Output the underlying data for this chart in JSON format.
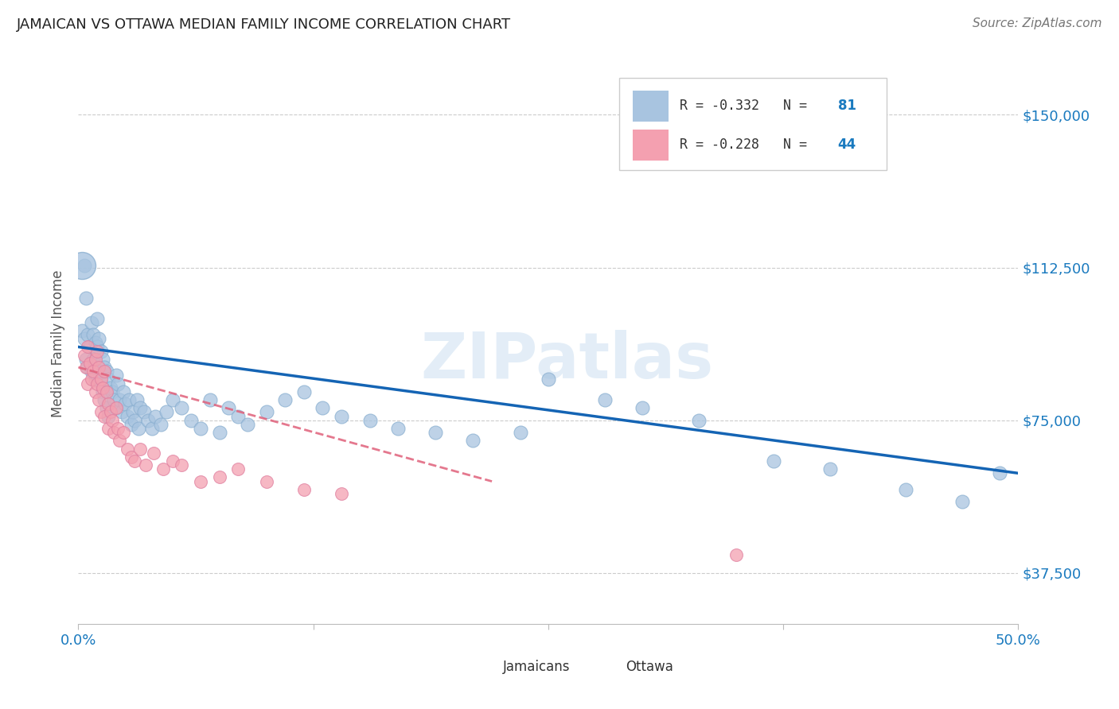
{
  "title": "JAMAICAN VS OTTAWA MEDIAN FAMILY INCOME CORRELATION CHART",
  "source_text": "Source: ZipAtlas.com",
  "ylabel": "Median Family Income",
  "xlim": [
    0.0,
    50.0
  ],
  "ylim": [
    25000,
    162500
  ],
  "yticks": [
    37500,
    75000,
    112500,
    150000
  ],
  "ytick_labels": [
    "$37,500",
    "$75,000",
    "$112,500",
    "$150,000"
  ],
  "blue_color": "#a8c4e0",
  "pink_color": "#f4a0b0",
  "line_blue": "#1464b4",
  "line_pink": "#e0607a",
  "watermark": "ZIPatlas",
  "blue_scatter_x": [
    0.2,
    0.3,
    0.3,
    0.4,
    0.4,
    0.5,
    0.5,
    0.6,
    0.7,
    0.7,
    0.8,
    0.8,
    0.9,
    0.9,
    1.0,
    1.0,
    1.0,
    1.1,
    1.1,
    1.2,
    1.2,
    1.3,
    1.3,
    1.4,
    1.4,
    1.5,
    1.5,
    1.6,
    1.6,
    1.7,
    1.8,
    1.9,
    2.0,
    2.0,
    2.1,
    2.2,
    2.3,
    2.4,
    2.5,
    2.6,
    2.7,
    2.8,
    2.9,
    3.0,
    3.1,
    3.2,
    3.3,
    3.5,
    3.7,
    3.9,
    4.1,
    4.4,
    4.7,
    5.0,
    5.5,
    6.0,
    6.5,
    7.0,
    7.5,
    8.0,
    8.5,
    9.0,
    10.0,
    11.0,
    12.0,
    13.0,
    14.0,
    15.5,
    17.0,
    19.0,
    21.0,
    23.5,
    25.0,
    28.0,
    30.0,
    33.0,
    37.0,
    40.0,
    44.0,
    47.0,
    49.0
  ],
  "blue_scatter_y": [
    97000,
    113000,
    95000,
    105000,
    90000,
    96000,
    88000,
    93000,
    99000,
    87000,
    96000,
    90000,
    94000,
    85000,
    100000,
    93000,
    86000,
    95000,
    87000,
    92000,
    84000,
    90000,
    82000,
    88000,
    80000,
    87000,
    78000,
    85000,
    76000,
    83000,
    82000,
    80000,
    86000,
    78000,
    84000,
    80000,
    77000,
    82000,
    79000,
    76000,
    80000,
    74000,
    77000,
    75000,
    80000,
    73000,
    78000,
    77000,
    75000,
    73000,
    76000,
    74000,
    77000,
    80000,
    78000,
    75000,
    73000,
    80000,
    72000,
    78000,
    76000,
    74000,
    77000,
    80000,
    82000,
    78000,
    76000,
    75000,
    73000,
    72000,
    70000,
    72000,
    85000,
    80000,
    78000,
    75000,
    65000,
    63000,
    58000,
    55000,
    62000
  ],
  "blue_scatter_large_x": [
    0.2
  ],
  "blue_scatter_large_y": [
    113000
  ],
  "pink_scatter_x": [
    0.3,
    0.4,
    0.5,
    0.5,
    0.6,
    0.7,
    0.8,
    0.9,
    0.9,
    1.0,
    1.0,
    1.1,
    1.1,
    1.2,
    1.2,
    1.3,
    1.4,
    1.4,
    1.5,
    1.6,
    1.6,
    1.7,
    1.8,
    1.9,
    2.0,
    2.1,
    2.2,
    2.4,
    2.6,
    2.8,
    3.0,
    3.3,
    3.6,
    4.0,
    4.5,
    5.0,
    5.5,
    6.5,
    7.5,
    8.5,
    10.0,
    12.0,
    14.0,
    35.0
  ],
  "pink_scatter_y": [
    91000,
    88000,
    93000,
    84000,
    89000,
    85000,
    87000,
    90000,
    82000,
    92000,
    84000,
    88000,
    80000,
    85000,
    77000,
    83000,
    87000,
    76000,
    82000,
    79000,
    73000,
    77000,
    75000,
    72000,
    78000,
    73000,
    70000,
    72000,
    68000,
    66000,
    65000,
    68000,
    64000,
    67000,
    63000,
    65000,
    64000,
    60000,
    61000,
    63000,
    60000,
    58000,
    57000,
    42000
  ],
  "blue_line_x": [
    0,
    50
  ],
  "blue_line_y": [
    93000,
    62000
  ],
  "pink_line_x": [
    0,
    22
  ],
  "pink_line_y": [
    88000,
    60000
  ]
}
